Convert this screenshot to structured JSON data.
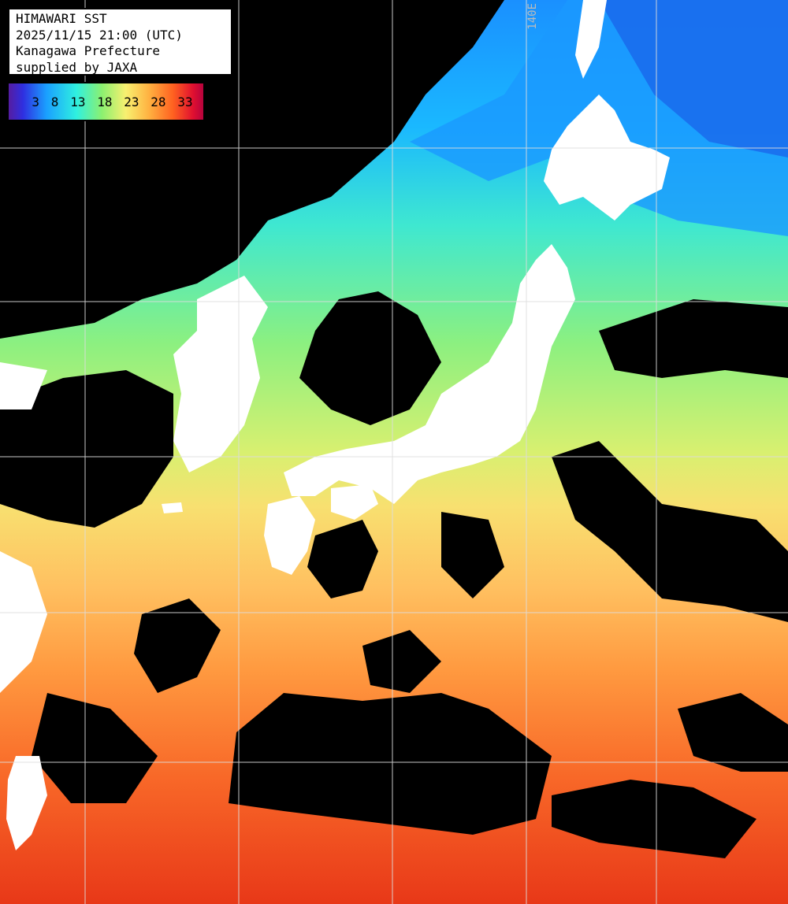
{
  "header": {
    "line1": "HIMAWARI SST",
    "line2": "2025/11/15 21:00 (UTC)",
    "line3": "Kanagawa Prefecture",
    "line4": "supplied by JAXA"
  },
  "colorbar": {
    "ticks": [
      "3",
      "8",
      "13",
      "18",
      "23",
      "28",
      "33"
    ],
    "stops": [
      "#5a1a9a",
      "#2f2fe0",
      "#1aa0ff",
      "#2ff0e0",
      "#8cf070",
      "#f8f070",
      "#ffb040",
      "#ff6020",
      "#e01030",
      "#b00040"
    ]
  },
  "graticule": {
    "label": "140E"
  },
  "palette": {
    "land": "#ffffff",
    "cloud": "#000000",
    "cold": "#1a90ff",
    "cyan": "#2fe8d0",
    "green": "#8cf080",
    "yellow": "#f8e070",
    "orange": "#ff9a40",
    "red": "#f05020"
  }
}
